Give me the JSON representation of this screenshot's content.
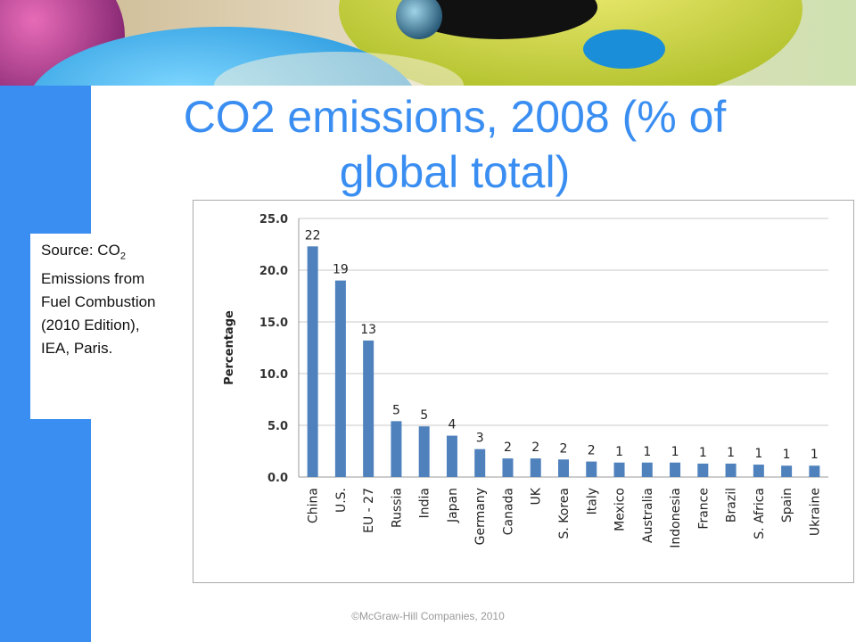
{
  "slide": {
    "title": "CO2 emissions, 2008 (% of global total)",
    "source_prefix": "Source: CO",
    "source_sub": "2",
    "source_rest": " Emissions from Fuel Combustion (2010 Edition), IEA, Paris.",
    "footer": "©McGraw-Hill Companies, 2010"
  },
  "colors": {
    "accent": "#3a8ef2",
    "bar": "#4f81bd"
  },
  "chart_data": {
    "type": "bar",
    "title": "",
    "xlabel": "",
    "ylabel": "Percentage",
    "ylim": [
      0,
      25
    ],
    "yticks": [
      "0.0",
      "5.0",
      "10.0",
      "15.0",
      "20.0",
      "25.0"
    ],
    "grid": true,
    "categories": [
      "China",
      "U.S.",
      "EU - 27",
      "Russia",
      "India",
      "Japan",
      "Germany",
      "Canada",
      "UK",
      "S. Korea",
      "Italy",
      "Mexico",
      "Australia",
      "Indonesia",
      "France",
      "Brazil",
      "S. Africa",
      "Spain",
      "Ukraine"
    ],
    "values": [
      22.3,
      19.0,
      13.2,
      5.4,
      4.9,
      4.0,
      2.7,
      1.8,
      1.8,
      1.7,
      1.5,
      1.4,
      1.4,
      1.4,
      1.3,
      1.3,
      1.2,
      1.1,
      1.1
    ],
    "data_labels": [
      "22",
      "19",
      "13",
      "5",
      "5",
      "4",
      "3",
      "2",
      "2",
      "2",
      "2",
      "1",
      "1",
      "1",
      "1",
      "1",
      "1",
      "1",
      "1"
    ]
  }
}
